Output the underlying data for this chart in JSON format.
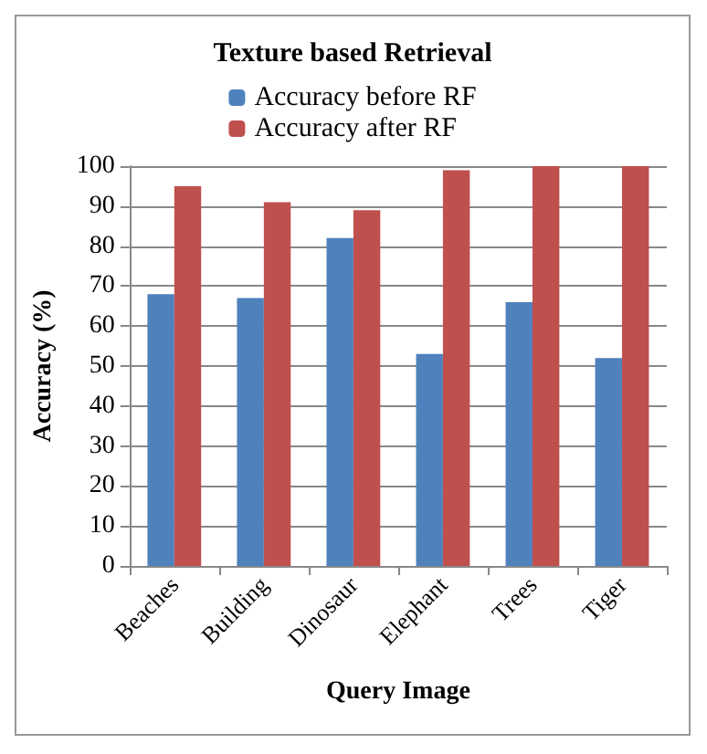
{
  "chart_data": {
    "type": "bar",
    "title": "Texture based Retrieval",
    "xlabel": "Query Image",
    "ylabel": "Accuracy (%)",
    "categories": [
      "Beaches",
      "Building",
      "Dinosaur",
      "Elephant",
      "Trees",
      "Tiger"
    ],
    "series": [
      {
        "name": "Accuracy before RF",
        "color": "#4f81bd",
        "values": [
          68,
          67,
          82,
          53,
          66,
          52
        ]
      },
      {
        "name": "Accuracy after RF",
        "color": "#c0504d",
        "values": [
          95,
          91,
          89,
          99,
          100,
          100
        ]
      }
    ],
    "ylim": [
      0,
      100
    ],
    "yticks": [
      0,
      10,
      20,
      30,
      40,
      50,
      60,
      70,
      80,
      90,
      100
    ],
    "grid": "y",
    "legend": "top"
  }
}
